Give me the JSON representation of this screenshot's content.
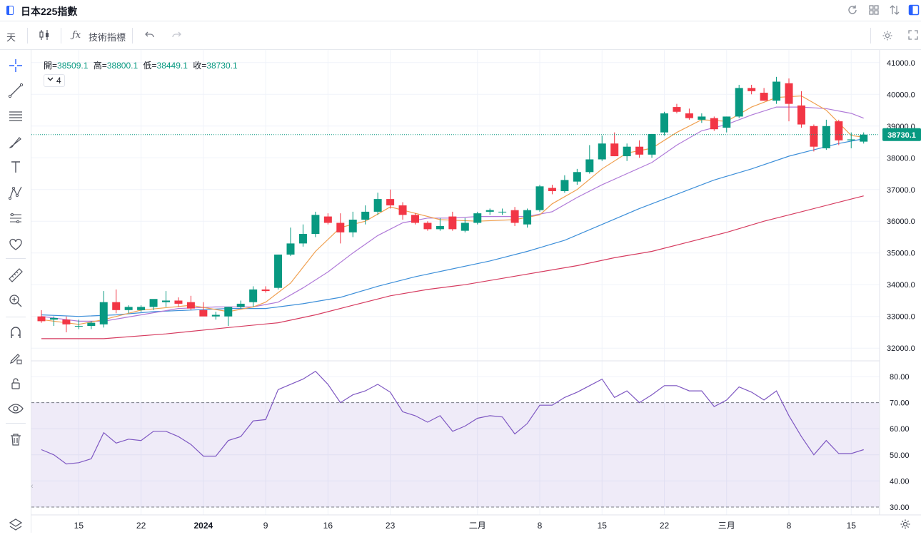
{
  "window": {
    "title": "日本225指數"
  },
  "toolbar": {
    "interval": "天",
    "indicators_label": "技術指標"
  },
  "legend": {
    "open_label": "開=",
    "open_value": "38509.1",
    "high_label": "高=",
    "high_value": "38800.1",
    "low_label": "低=",
    "low_value": "38449.1",
    "close_label": "收=",
    "close_value": "38730.1",
    "ma_count": "4"
  },
  "colors": {
    "up": "#089981",
    "down": "#f23645",
    "ma5": "#f0a050",
    "ma10": "#b07ad8",
    "ma20": "#3d8fd9",
    "ma60": "#d63c60",
    "rsi": "#7e57c2",
    "accent": "#2962ff"
  },
  "icons": [
    "app-icon",
    "refresh-icon",
    "grid-icon",
    "compare-icon",
    "panel-icon",
    "candles-icon",
    "fx-icon",
    "undo-icon",
    "redo-icon",
    "settings-icon",
    "fullscreen-icon",
    "crosshair-icon",
    "trendline-icon",
    "fib-icon",
    "brush-icon",
    "text-icon",
    "pattern-icon",
    "forecast-icon",
    "heart-icon",
    "ruler-icon",
    "zoom-icon",
    "magnet-icon",
    "lock-draw-icon",
    "lock-icon",
    "eye-icon",
    "trash-icon",
    "layers-icon",
    "gear-icon"
  ],
  "chart_data": {
    "type": "candlestick",
    "last_price_label": "38730.1",
    "price_axis": {
      "min": 31600,
      "max": 41400,
      "ticks": [
        "32000.0",
        "33000.0",
        "34000.0",
        "35000.0",
        "36000.0",
        "37000.0",
        "38000.0",
        "39000.0",
        "40000.0",
        "41000.0"
      ]
    },
    "rsi_axis": {
      "min": 27,
      "max": 86,
      "ticks": [
        "30.00",
        "40.00",
        "50.00",
        "60.00",
        "70.00",
        "80.00"
      ],
      "upper_band": 70,
      "lower_band": 30
    },
    "x_labels": [
      {
        "i": 3,
        "label": "15"
      },
      {
        "i": 8,
        "label": "22"
      },
      {
        "i": 13,
        "label": "2024"
      },
      {
        "i": 18,
        "label": "9"
      },
      {
        "i": 23,
        "label": "16"
      },
      {
        "i": 28,
        "label": "23"
      },
      {
        "i": 35,
        "label": "二月"
      },
      {
        "i": 40,
        "label": "8"
      },
      {
        "i": 45,
        "label": "15"
      },
      {
        "i": 50,
        "label": "22"
      },
      {
        "i": 55,
        "label": "三月"
      },
      {
        "i": 60,
        "label": "8"
      },
      {
        "i": 65,
        "label": "15"
      }
    ],
    "candles": [
      [
        33000,
        33200,
        32800,
        32850
      ],
      [
        32900,
        33000,
        32700,
        32950
      ],
      [
        32900,
        33000,
        32500,
        32750
      ],
      [
        32700,
        32900,
        32600,
        32700
      ],
      [
        32700,
        32850,
        32600,
        32800
      ],
      [
        32750,
        33800,
        32650,
        33450
      ],
      [
        33450,
        33850,
        33100,
        33200
      ],
      [
        33200,
        33350,
        33100,
        33300
      ],
      [
        33200,
        33350,
        33150,
        33300
      ],
      [
        33300,
        33500,
        33200,
        33550
      ],
      [
        33450,
        33800,
        33300,
        33500
      ],
      [
        33500,
        33600,
        33300,
        33400
      ],
      [
        33450,
        33650,
        33200,
        33250
      ],
      [
        33200,
        33450,
        33050,
        33000
      ],
      [
        33000,
        33150,
        32900,
        33050
      ],
      [
        33000,
        33300,
        32700,
        33300
      ],
      [
        33300,
        33500,
        33250,
        33400
      ],
      [
        33450,
        33950,
        33300,
        33850
      ],
      [
        33850,
        33950,
        33750,
        33800
      ],
      [
        33900,
        34950,
        33850,
        34950
      ],
      [
        34950,
        35800,
        34900,
        35300
      ],
      [
        35300,
        35900,
        35200,
        35600
      ],
      [
        35600,
        36300,
        35500,
        36200
      ],
      [
        36150,
        36250,
        35900,
        35950
      ],
      [
        35950,
        36250,
        35300,
        35650
      ],
      [
        35650,
        36300,
        35500,
        36050
      ],
      [
        36050,
        36500,
        35900,
        36300
      ],
      [
        36300,
        36900,
        36200,
        36700
      ],
      [
        36700,
        37000,
        36400,
        36500
      ],
      [
        36500,
        36600,
        36050,
        36200
      ],
      [
        36200,
        36250,
        35900,
        35950
      ],
      [
        35950,
        36000,
        35700,
        35750
      ],
      [
        35750,
        36100,
        35700,
        35850
      ],
      [
        36150,
        36300,
        35700,
        35750
      ],
      [
        35700,
        36100,
        35650,
        35950
      ],
      [
        35950,
        36300,
        35900,
        36250
      ],
      [
        36300,
        36400,
        36200,
        36350
      ],
      [
        36300,
        36400,
        36200,
        36300
      ],
      [
        36350,
        36450,
        35850,
        35950
      ],
      [
        35900,
        36400,
        35800,
        36350
      ],
      [
        36350,
        37150,
        36300,
        37100
      ],
      [
        37050,
        37150,
        36850,
        36950
      ],
      [
        36950,
        37450,
        36900,
        37300
      ],
      [
        37250,
        37650,
        37150,
        37550
      ],
      [
        37550,
        38400,
        37500,
        37950
      ],
      [
        37950,
        38700,
        37900,
        38450
      ],
      [
        38450,
        38800,
        38050,
        38050
      ],
      [
        38050,
        38450,
        37900,
        38350
      ],
      [
        38350,
        38550,
        38000,
        38100
      ],
      [
        38100,
        38750,
        38000,
        38750
      ],
      [
        38800,
        39450,
        38700,
        39400
      ],
      [
        39600,
        39700,
        39400,
        39450
      ],
      [
        39400,
        39550,
        39200,
        39250
      ],
      [
        39200,
        39400,
        39100,
        39300
      ],
      [
        39250,
        39300,
        38850,
        38900
      ],
      [
        38950,
        39300,
        38800,
        39300
      ],
      [
        39300,
        40300,
        39250,
        40200
      ],
      [
        40200,
        40300,
        40000,
        40100
      ],
      [
        40050,
        40200,
        39800,
        39800
      ],
      [
        39800,
        40550,
        39700,
        40400
      ],
      [
        40350,
        40500,
        39150,
        39700
      ],
      [
        39650,
        40100,
        38950,
        39050
      ],
      [
        39000,
        39050,
        38200,
        38350
      ],
      [
        38300,
        39200,
        38250,
        39000
      ],
      [
        39150,
        39200,
        38400,
        38550
      ],
      [
        38550,
        38800,
        38300,
        38580
      ],
      [
        38509.1,
        38800.1,
        38449.1,
        38730.1
      ]
    ],
    "ma5": [
      [
        0,
        32900
      ],
      [
        3,
        32750
      ],
      [
        5,
        32900
      ],
      [
        8,
        33200
      ],
      [
        12,
        33350
      ],
      [
        15,
        33150
      ],
      [
        17,
        33300
      ],
      [
        18,
        33450
      ],
      [
        20,
        34050
      ],
      [
        22,
        35050
      ],
      [
        24,
        35800
      ],
      [
        26,
        36000
      ],
      [
        28,
        36450
      ],
      [
        30,
        36250
      ],
      [
        32,
        36050
      ],
      [
        35,
        36000
      ],
      [
        38,
        36050
      ],
      [
        40,
        36200
      ],
      [
        41,
        36550
      ],
      [
        43,
        37000
      ],
      [
        45,
        37650
      ],
      [
        47,
        38150
      ],
      [
        49,
        38300
      ],
      [
        51,
        38800
      ],
      [
        53,
        39200
      ],
      [
        55,
        39150
      ],
      [
        57,
        39600
      ],
      [
        59,
        39900
      ],
      [
        61,
        39950
      ],
      [
        63,
        39500
      ],
      [
        65,
        38700
      ],
      [
        66,
        38650
      ]
    ],
    "ma10": [
      [
        0,
        33000
      ],
      [
        3,
        32850
      ],
      [
        5,
        32850
      ],
      [
        8,
        33050
      ],
      [
        11,
        33250
      ],
      [
        14,
        33300
      ],
      [
        17,
        33300
      ],
      [
        19,
        33450
      ],
      [
        21,
        33900
      ],
      [
        23,
        34400
      ],
      [
        25,
        35000
      ],
      [
        27,
        35550
      ],
      [
        29,
        35950
      ],
      [
        31,
        36100
      ],
      [
        33,
        36100
      ],
      [
        35,
        36150
      ],
      [
        37,
        36150
      ],
      [
        39,
        36150
      ],
      [
        41,
        36300
      ],
      [
        43,
        36750
      ],
      [
        45,
        37150
      ],
      [
        47,
        37500
      ],
      [
        49,
        37850
      ],
      [
        51,
        38400
      ],
      [
        53,
        38850
      ],
      [
        55,
        39050
      ],
      [
        57,
        39350
      ],
      [
        59,
        39600
      ],
      [
        61,
        39600
      ],
      [
        63,
        39550
      ],
      [
        65,
        39400
      ],
      [
        66,
        39250
      ]
    ],
    "ma20": [
      [
        0,
        33050
      ],
      [
        3,
        33000
      ],
      [
        6,
        33050
      ],
      [
        9,
        33150
      ],
      [
        12,
        33200
      ],
      [
        15,
        33250
      ],
      [
        18,
        33250
      ],
      [
        21,
        33400
      ],
      [
        24,
        33600
      ],
      [
        27,
        33950
      ],
      [
        30,
        34250
      ],
      [
        33,
        34500
      ],
      [
        36,
        34750
      ],
      [
        39,
        35050
      ],
      [
        42,
        35400
      ],
      [
        45,
        35900
      ],
      [
        48,
        36400
      ],
      [
        51,
        36850
      ],
      [
        54,
        37300
      ],
      [
        57,
        37650
      ],
      [
        60,
        38050
      ],
      [
        62,
        38250
      ],
      [
        64,
        38450
      ],
      [
        66,
        38600
      ]
    ],
    "ma60": [
      [
        0,
        32300
      ],
      [
        5,
        32300
      ],
      [
        10,
        32450
      ],
      [
        15,
        32650
      ],
      [
        19,
        32800
      ],
      [
        22,
        33050
      ],
      [
        25,
        33350
      ],
      [
        28,
        33650
      ],
      [
        31,
        33850
      ],
      [
        34,
        34000
      ],
      [
        37,
        34200
      ],
      [
        40,
        34400
      ],
      [
        43,
        34600
      ],
      [
        46,
        34850
      ],
      [
        49,
        35050
      ],
      [
        52,
        35350
      ],
      [
        55,
        35650
      ],
      [
        58,
        36000
      ],
      [
        61,
        36300
      ],
      [
        64,
        36600
      ],
      [
        66,
        36800
      ]
    ],
    "rsi": [
      52,
      50,
      46.5,
      47,
      48.5,
      58.5,
      54.5,
      56,
      55.5,
      59,
      59,
      57,
      54,
      49.5,
      49.5,
      55.5,
      57,
      63,
      63.5,
      75,
      77,
      79,
      82,
      77,
      70,
      73,
      74.5,
      77,
      74,
      66.5,
      65,
      62.5,
      65,
      59,
      61,
      64,
      65,
      64.5,
      58,
      62,
      69,
      69,
      72,
      74,
      76.5,
      79,
      72,
      74.5,
      70,
      73,
      76.5,
      76.5,
      74.5,
      74.5,
      68.5,
      71,
      76,
      74,
      71,
      74.5,
      65,
      57,
      50,
      55.5,
      50.5,
      50.5,
      52
    ]
  }
}
